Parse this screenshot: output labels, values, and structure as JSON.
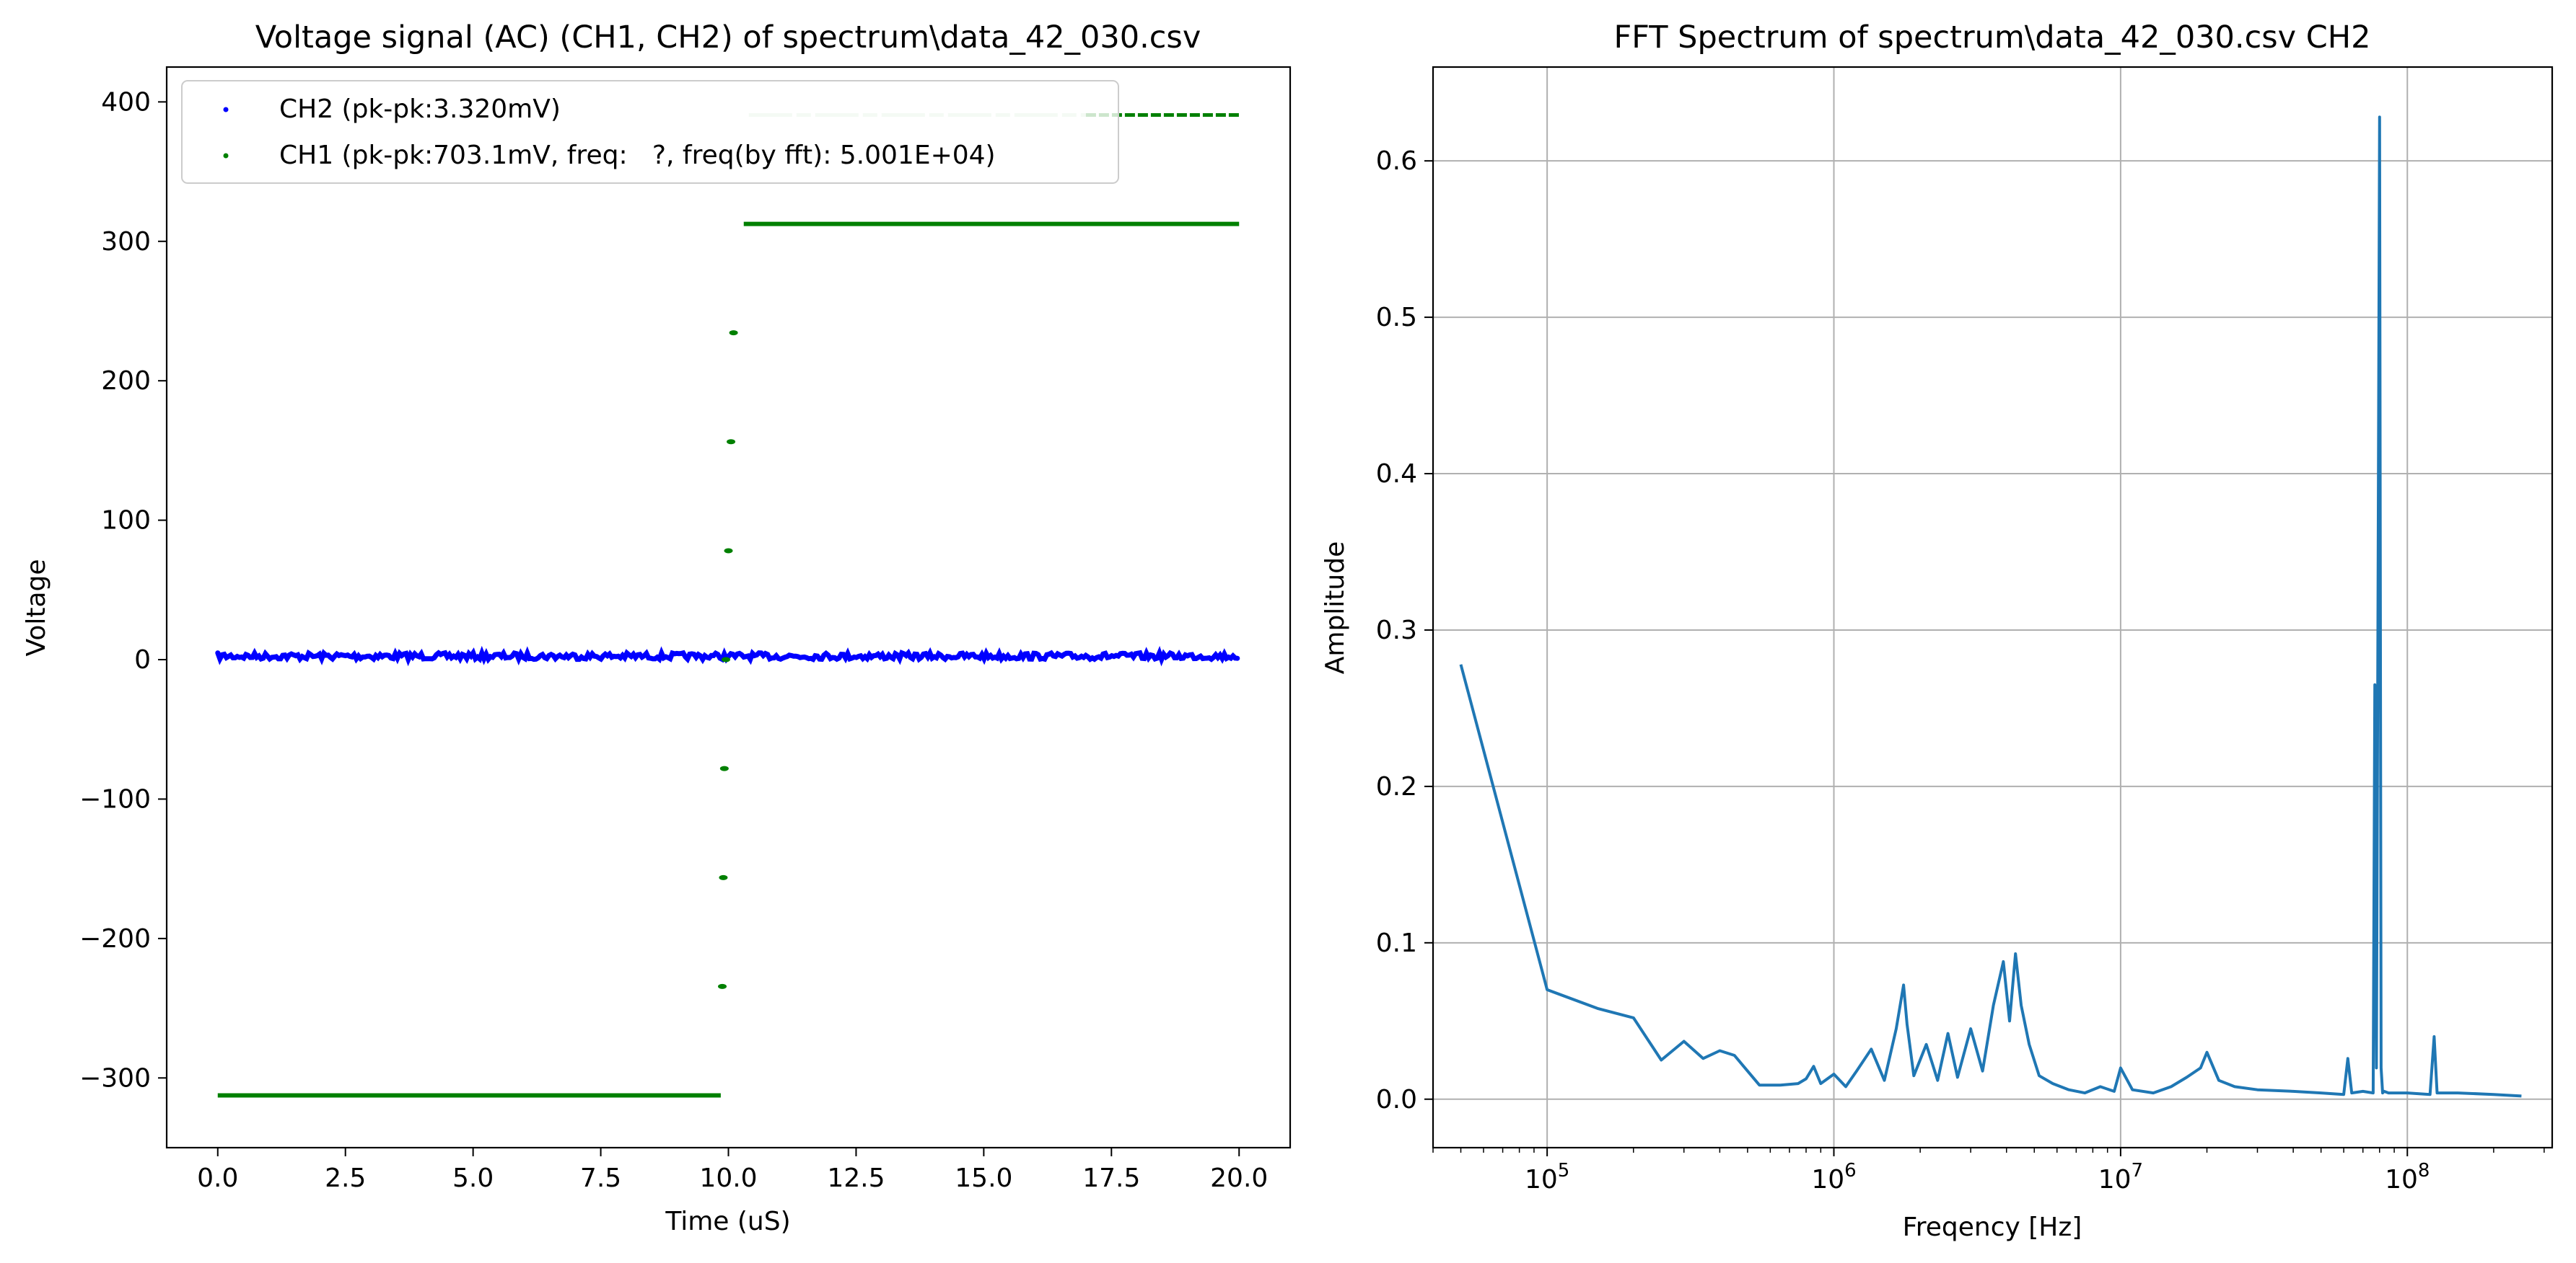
{
  "chart_data": [
    {
      "type": "scatter",
      "title": "Voltage signal (AC) (CH1, CH2) of spectrum\\data_42_030.csv",
      "xlabel": "Time (uS)",
      "ylabel": "Voltage",
      "xlim": [
        -1.0,
        21.0
      ],
      "ylim": [
        -350,
        425
      ],
      "xticks": [
        "0.0",
        "2.5",
        "5.0",
        "7.5",
        "10.0",
        "12.5",
        "15.0",
        "17.5",
        "20.0"
      ],
      "yticks": [
        "−300",
        "−200",
        "−100",
        "0",
        "100",
        "200",
        "300",
        "400"
      ],
      "grid": false,
      "legend": "upper left",
      "series": [
        {
          "name": "CH2 (pk-pk:3.320mV)",
          "color": "#0000ff",
          "description_points": [
            [
              0.0,
              2.5
            ],
            [
              2.5,
              2.0
            ],
            [
              5.0,
              2.5
            ],
            [
              7.5,
              2.0
            ],
            [
              10.0,
              2.5
            ],
            [
              12.5,
              2.5
            ],
            [
              15.0,
              3.0
            ],
            [
              17.5,
              2.5
            ],
            [
              20.0,
              3.0
            ]
          ]
        },
        {
          "name": "CH1 (pk-pk:703.1mV, freq:   ?, freq(by fft): 5.001E+04)",
          "color": "#008000",
          "segments": [
            {
              "x": [
                0.0,
                9.85
              ],
              "y": -312.5
            },
            {
              "x": [
                10.3,
                20.0
              ],
              "y": 312.5
            },
            {
              "x": [
                10.4,
                20.0
              ],
              "y": 390.6
            }
          ],
          "points": [
            [
              9.88,
              -234.4
            ],
            [
              9.9,
              -156.3
            ],
            [
              9.92,
              -78.1
            ],
            [
              9.95,
              0.0
            ],
            [
              10.0,
              78.1
            ],
            [
              10.05,
              156.3
            ],
            [
              10.1,
              234.4
            ]
          ]
        }
      ]
    },
    {
      "type": "line",
      "title": "FFT Spectrum of spectrum\\data_42_030.csv CH2",
      "xlabel": "Freqency [Hz]",
      "ylabel": "Amplitude",
      "xscale": "log",
      "xlim": [
        40000,
        320000000
      ],
      "ylim": [
        -0.031,
        0.66
      ],
      "xticks": [
        "10^5",
        "10^6",
        "10^7",
        "10^8"
      ],
      "yticks": [
        "0.0",
        "0.1",
        "0.2",
        "0.3",
        "0.4",
        "0.5",
        "0.6"
      ],
      "grid": true,
      "color": "#1f77b4",
      "x": [
        50000,
        100000,
        150000,
        200000,
        250000,
        300000,
        350000,
        400000,
        450000,
        500000,
        550000,
        650000,
        750000,
        800000,
        850000,
        900000,
        1000000,
        1100000,
        1200000,
        1350000,
        1500000,
        1650000,
        1750000,
        1800000,
        1900000,
        2100000,
        2300000,
        2500000,
        2700000,
        3000000,
        3300000,
        3600000,
        3900000,
        4100000,
        4300000,
        4500000,
        4800000,
        5200000,
        5800000,
        6600000,
        7500000,
        8500000,
        9500000,
        10000000,
        11000000,
        13000000,
        15000000,
        17000000,
        19000000,
        20000000,
        22000000,
        25000000,
        30000000,
        40000000,
        50000000,
        60000000,
        62000000,
        64000000,
        70000000,
        76000000,
        77000000,
        78000000,
        79000000,
        80000000,
        81000000,
        82000000,
        83000000,
        86000000,
        100000000,
        120000000,
        124000000,
        127000000,
        150000000,
        200000000,
        250000000
      ],
      "values": [
        0.278,
        0.07,
        0.058,
        0.052,
        0.025,
        0.037,
        0.026,
        0.031,
        0.028,
        0.018,
        0.009,
        0.009,
        0.01,
        0.013,
        0.021,
        0.01,
        0.016,
        0.008,
        0.018,
        0.032,
        0.012,
        0.045,
        0.073,
        0.048,
        0.015,
        0.035,
        0.012,
        0.042,
        0.014,
        0.045,
        0.018,
        0.06,
        0.088,
        0.05,
        0.093,
        0.06,
        0.035,
        0.015,
        0.01,
        0.006,
        0.004,
        0.008,
        0.005,
        0.02,
        0.006,
        0.004,
        0.008,
        0.014,
        0.02,
        0.03,
        0.012,
        0.008,
        0.006,
        0.005,
        0.004,
        0.003,
        0.026,
        0.004,
        0.005,
        0.004,
        0.265,
        0.02,
        0.318,
        0.628,
        0.02,
        0.004,
        0.005,
        0.004,
        0.004,
        0.003,
        0.04,
        0.004,
        0.004,
        0.003,
        0.002
      ]
    }
  ]
}
